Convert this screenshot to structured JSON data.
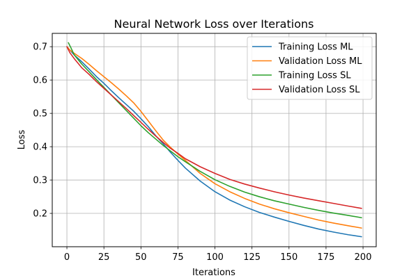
{
  "chart_data": {
    "type": "line",
    "title": "Neural Network Loss over Iterations",
    "xlabel": "Iterations",
    "ylabel": "Loss",
    "xlim": [
      -9.9,
      208.9
    ],
    "ylim": [
      0.1,
      0.74
    ],
    "xticks": [
      0,
      25,
      50,
      75,
      100,
      125,
      150,
      175,
      200
    ],
    "yticks": [
      0.2,
      0.3,
      0.4,
      0.5,
      0.6,
      0.7
    ],
    "grid": true,
    "legend_position": "top-right",
    "series": [
      {
        "name": "Training Loss ML",
        "color": "#1f77b4",
        "x": [
          0,
          2,
          5,
          10,
          15,
          20,
          25,
          30,
          35,
          40,
          45,
          50,
          55,
          60,
          65,
          70,
          75,
          80,
          90,
          100,
          110,
          120,
          130,
          140,
          150,
          160,
          170,
          180,
          190,
          199
        ],
        "y": [
          0.7,
          0.69,
          0.675,
          0.655,
          0.633,
          0.61,
          0.59,
          0.568,
          0.547,
          0.527,
          0.507,
          0.484,
          0.46,
          0.433,
          0.409,
          0.383,
          0.359,
          0.336,
          0.297,
          0.265,
          0.24,
          0.22,
          0.203,
          0.189,
          0.176,
          0.164,
          0.153,
          0.144,
          0.136,
          0.13
        ]
      },
      {
        "name": "Validation Loss ML",
        "color": "#ff7f0e",
        "x": [
          0,
          2,
          5,
          10,
          15,
          20,
          25,
          30,
          35,
          40,
          45,
          50,
          55,
          60,
          65,
          70,
          75,
          80,
          90,
          100,
          110,
          120,
          130,
          140,
          150,
          160,
          170,
          180,
          190,
          199
        ],
        "y": [
          0.7,
          0.69,
          0.68,
          0.665,
          0.647,
          0.628,
          0.61,
          0.592,
          0.573,
          0.553,
          0.532,
          0.506,
          0.477,
          0.448,
          0.42,
          0.398,
          0.378,
          0.359,
          0.32,
          0.289,
          0.265,
          0.245,
          0.228,
          0.214,
          0.202,
          0.191,
          0.18,
          0.171,
          0.163,
          0.156
        ]
      },
      {
        "name": "Training Loss SL",
        "color": "#2ca02c",
        "x": [
          1,
          3,
          5,
          10,
          15,
          20,
          25,
          30,
          35,
          40,
          45,
          50,
          55,
          60,
          65,
          70,
          75,
          80,
          90,
          100,
          110,
          120,
          130,
          140,
          150,
          160,
          170,
          180,
          190,
          199
        ],
        "y": [
          0.712,
          0.694,
          0.675,
          0.648,
          0.625,
          0.601,
          0.578,
          0.555,
          0.532,
          0.509,
          0.486,
          0.463,
          0.442,
          0.423,
          0.404,
          0.387,
          0.37,
          0.355,
          0.326,
          0.301,
          0.281,
          0.264,
          0.25,
          0.238,
          0.228,
          0.218,
          0.209,
          0.201,
          0.194,
          0.187
        ]
      },
      {
        "name": "Validation Loss SL",
        "color": "#d62728",
        "x": [
          0,
          2,
          5,
          10,
          15,
          20,
          25,
          30,
          35,
          40,
          45,
          50,
          55,
          60,
          65,
          70,
          75,
          80,
          90,
          100,
          110,
          120,
          130,
          140,
          150,
          160,
          170,
          180,
          190,
          199
        ],
        "y": [
          0.7,
          0.682,
          0.664,
          0.637,
          0.617,
          0.595,
          0.575,
          0.555,
          0.535,
          0.515,
          0.494,
          0.473,
          0.452,
          0.432,
          0.413,
          0.395,
          0.38,
          0.364,
          0.34,
          0.32,
          0.302,
          0.288,
          0.276,
          0.265,
          0.255,
          0.246,
          0.238,
          0.23,
          0.222,
          0.215
        ]
      }
    ]
  }
}
